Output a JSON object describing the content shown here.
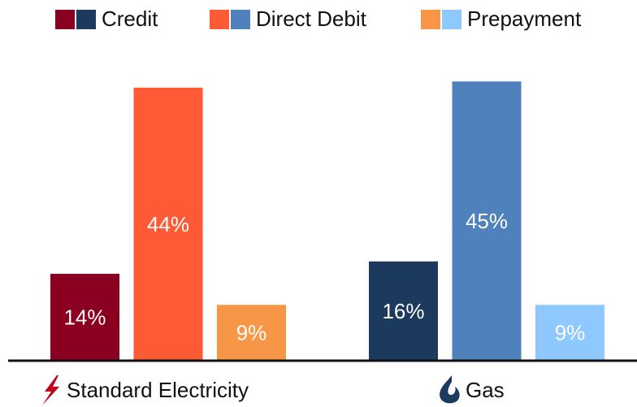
{
  "chart_data": {
    "type": "bar",
    "categories": [
      "Standard Electricity",
      "Gas"
    ],
    "series": [
      {
        "name": "Credit",
        "colors": [
          "#8b0020",
          "#1b3a5e"
        ],
        "values": [
          14,
          16
        ],
        "value_labels": [
          "14%",
          "16%"
        ]
      },
      {
        "name": "Direct Debit",
        "colors": [
          "#ff5a36",
          "#4f81bd"
        ],
        "values": [
          44,
          45
        ],
        "value_labels": [
          "44%",
          "45%"
        ]
      },
      {
        "name": "Prepayment",
        "colors": [
          "#f79646",
          "#8ec8ff"
        ],
        "values": [
          9,
          9
        ],
        "value_labels": [
          "9%",
          "9%"
        ]
      }
    ],
    "ylim": [
      0,
      58
    ]
  }
}
